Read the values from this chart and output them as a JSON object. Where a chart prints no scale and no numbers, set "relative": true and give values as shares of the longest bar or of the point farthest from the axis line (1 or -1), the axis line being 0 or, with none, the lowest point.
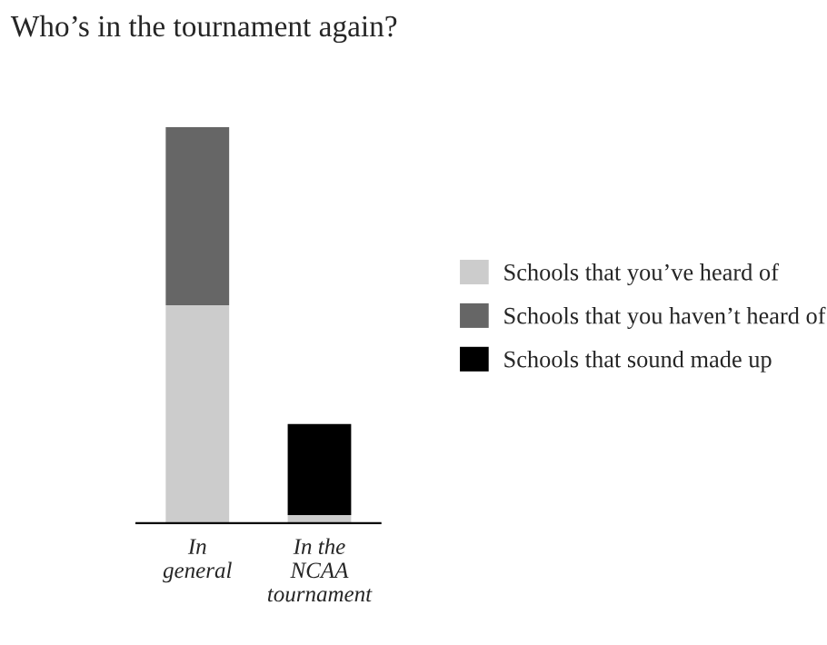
{
  "chart_data": {
    "type": "bar",
    "title": "Who’s in the tournament again?",
    "categories": [
      "In\ngeneral",
      "In the\nNCAA\ntournament"
    ],
    "stacked": true,
    "relative": true,
    "legend": "right",
    "grid": false,
    "series": [
      {
        "name": "Schools that you’ve heard of",
        "color": "#cccccc",
        "values": [
          0.55,
          0.02
        ]
      },
      {
        "name": "Schools that you haven’t heard of",
        "color": "#666666",
        "values": [
          0.45,
          0
        ]
      },
      {
        "name": "Schools that sound made up",
        "color": "#000000",
        "values": [
          0,
          0.23
        ]
      }
    ]
  }
}
